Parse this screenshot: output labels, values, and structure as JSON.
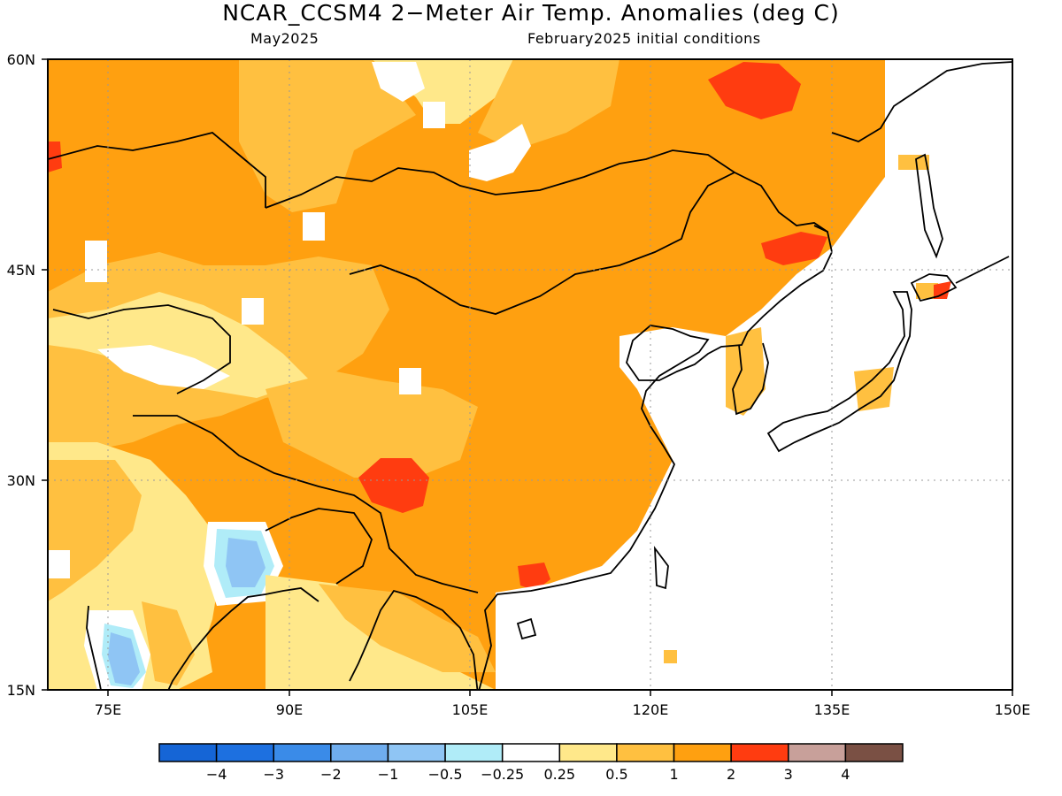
{
  "header": {
    "title": "NCAR_CCSM4 2−Meter Air Temp. Anomalies (deg C)",
    "subtitle_left": "May2025",
    "subtitle_right": "February2025 initial conditions"
  },
  "map": {
    "lat_range": [
      15,
      60
    ],
    "lon_range": [
      70,
      150
    ],
    "lat_ticks": [
      "60N",
      "45N",
      "30N",
      "15N"
    ],
    "lon_ticks": [
      "75E",
      "90E",
      "105E",
      "120E",
      "135E",
      "150E"
    ],
    "grid_lines": true,
    "frame_color": "#000000"
  },
  "legend": {
    "colors": [
      "#1565d6",
      "#1d70e0",
      "#3a8be8",
      "#6fadee",
      "#8fc5f4",
      "#b0ecf8",
      "#ffffff",
      "#ffe88a",
      "#ffc040",
      "#ffa010",
      "#ff3c10",
      "#c8a09a",
      "#7a5044"
    ],
    "labels": [
      "−4",
      "−3",
      "−2",
      "−1",
      "−0.5",
      "−0.25",
      "0.25",
      "0.5",
      "1",
      "2",
      "3",
      "4"
    ]
  },
  "palette": {
    "anom_lt_neg1": "#8fc5f4",
    "anom_neg05": "#b0ecf8",
    "anom_025": "#ffe88a",
    "anom_05_1": "#ffc040",
    "anom_1_2": "#ffa010",
    "anom_2_3": "#ff3c10",
    "land_outline": "#000000"
  }
}
